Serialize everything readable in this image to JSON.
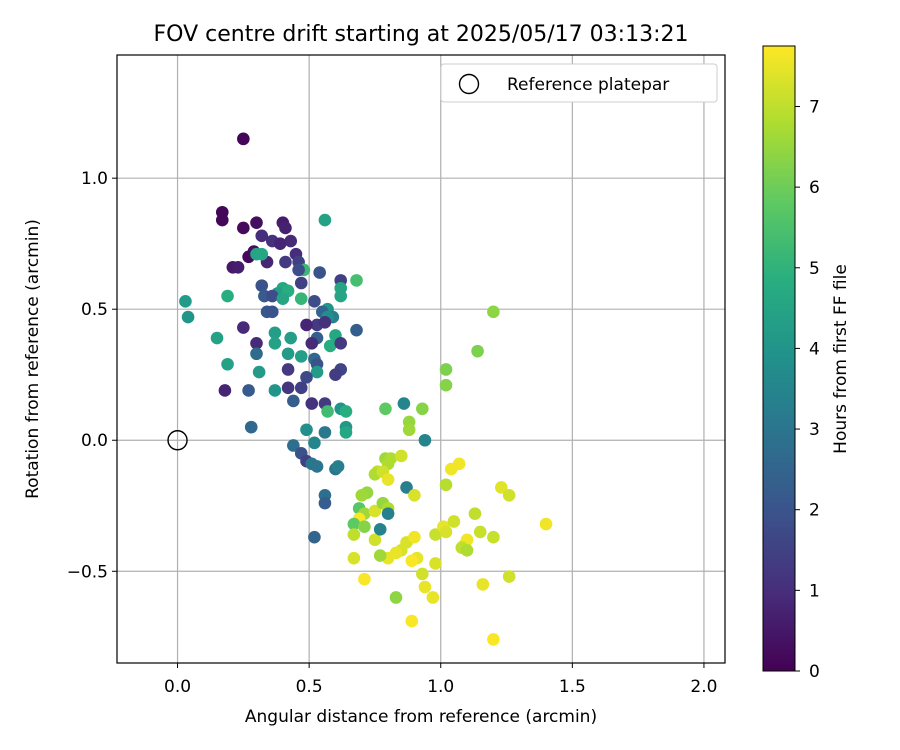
{
  "chart_data": {
    "type": "scatter",
    "title": "FOV centre drift starting at 2025/05/17 03:13:21",
    "xlabel": "Angular distance from reference (arcmin)",
    "ylabel": "Rotation from reference (arcmin)",
    "xlim": [
      -0.23,
      2.08
    ],
    "ylim": [
      -0.85,
      1.47
    ],
    "xticks": [
      0.0,
      0.5,
      1.0,
      1.5,
      2.0
    ],
    "xtick_labels": [
      "0.0",
      "0.5",
      "1.0",
      "1.5",
      "2.0"
    ],
    "yticks": [
      -0.5,
      0.0,
      0.5,
      1.0
    ],
    "ytick_labels": [
      "−0.5",
      "0.0",
      "0.5",
      "1.0"
    ],
    "grid": true,
    "legend": {
      "position": "top-right",
      "entries": [
        "Reference platepar"
      ]
    },
    "reference_point": {
      "x": 0.0,
      "y": 0.0
    },
    "colorbar": {
      "label": "Hours from first FF file",
      "range": [
        0,
        7.75
      ],
      "ticks": [
        0,
        1,
        2,
        3,
        4,
        5,
        6,
        7
      ],
      "tick_labels": [
        "0",
        "1",
        "2",
        "3",
        "4",
        "5",
        "6",
        "7"
      ],
      "colormap": "viridis"
    },
    "points": [
      {
        "x": 0.25,
        "y": 1.15,
        "t": 0.1
      },
      {
        "x": 0.17,
        "y": 0.87,
        "t": 0.1
      },
      {
        "x": 0.17,
        "y": 0.84,
        "t": 0.1
      },
      {
        "x": 0.25,
        "y": 0.81,
        "t": 0.2
      },
      {
        "x": 0.3,
        "y": 0.83,
        "t": 0.3
      },
      {
        "x": 0.4,
        "y": 0.83,
        "t": 0.6
      },
      {
        "x": 0.41,
        "y": 0.81,
        "t": 0.7
      },
      {
        "x": 0.32,
        "y": 0.78,
        "t": 1.0
      },
      {
        "x": 0.36,
        "y": 0.76,
        "t": 1.1
      },
      {
        "x": 0.43,
        "y": 0.76,
        "t": 0.9
      },
      {
        "x": 0.39,
        "y": 0.75,
        "t": 0.8
      },
      {
        "x": 0.29,
        "y": 0.72,
        "t": 0.3
      },
      {
        "x": 0.27,
        "y": 0.7,
        "t": 0.2
      },
      {
        "x": 0.45,
        "y": 0.71,
        "t": 1.0
      },
      {
        "x": 0.34,
        "y": 0.68,
        "t": 0.8
      },
      {
        "x": 0.41,
        "y": 0.68,
        "t": 1.3
      },
      {
        "x": 0.46,
        "y": 0.68,
        "t": 1.5
      },
      {
        "x": 0.21,
        "y": 0.66,
        "t": 0.5
      },
      {
        "x": 0.23,
        "y": 0.66,
        "t": 0.6
      },
      {
        "x": 0.3,
        "y": 0.71,
        "t": 4.5
      },
      {
        "x": 0.32,
        "y": 0.71,
        "t": 4.6
      },
      {
        "x": 0.48,
        "y": 0.65,
        "t": 5.2
      },
      {
        "x": 0.46,
        "y": 0.65,
        "t": 1.8
      },
      {
        "x": 0.54,
        "y": 0.64,
        "t": 2.0
      },
      {
        "x": 0.56,
        "y": 0.84,
        "t": 4.4
      },
      {
        "x": 0.68,
        "y": 0.61,
        "t": 5.4
      },
      {
        "x": 0.62,
        "y": 0.61,
        "t": 1.5
      },
      {
        "x": 0.47,
        "y": 0.6,
        "t": 1.5
      },
      {
        "x": 0.32,
        "y": 0.59,
        "t": 2.0
      },
      {
        "x": 0.4,
        "y": 0.58,
        "t": 4.6
      },
      {
        "x": 0.38,
        "y": 0.56,
        "t": 4.3
      },
      {
        "x": 0.42,
        "y": 0.57,
        "t": 4.8
      },
      {
        "x": 0.62,
        "y": 0.58,
        "t": 4.5
      },
      {
        "x": 0.19,
        "y": 0.55,
        "t": 4.8
      },
      {
        "x": 0.33,
        "y": 0.55,
        "t": 2.2
      },
      {
        "x": 0.36,
        "y": 0.55,
        "t": 1.8
      },
      {
        "x": 0.4,
        "y": 0.54,
        "t": 4.5
      },
      {
        "x": 0.47,
        "y": 0.54,
        "t": 5.1
      },
      {
        "x": 0.52,
        "y": 0.53,
        "t": 1.8
      },
      {
        "x": 0.62,
        "y": 0.55,
        "t": 4.5
      },
      {
        "x": 0.03,
        "y": 0.53,
        "t": 4.2
      },
      {
        "x": 0.57,
        "y": 0.5,
        "t": 4.0
      },
      {
        "x": 0.55,
        "y": 0.49,
        "t": 2.5
      },
      {
        "x": 0.34,
        "y": 0.49,
        "t": 2.1
      },
      {
        "x": 0.36,
        "y": 0.49,
        "t": 2.0
      },
      {
        "x": 0.59,
        "y": 0.47,
        "t": 3.3
      },
      {
        "x": 0.04,
        "y": 0.47,
        "t": 4.0
      },
      {
        "x": 0.57,
        "y": 0.47,
        "t": 3.8
      },
      {
        "x": 0.53,
        "y": 0.44,
        "t": 1.3
      },
      {
        "x": 0.49,
        "y": 0.44,
        "t": 0.8
      },
      {
        "x": 0.56,
        "y": 0.45,
        "t": 1.1
      },
      {
        "x": 0.68,
        "y": 0.42,
        "t": 2.3
      },
      {
        "x": 0.25,
        "y": 0.43,
        "t": 0.9
      },
      {
        "x": 0.37,
        "y": 0.41,
        "t": 4.3
      },
      {
        "x": 0.43,
        "y": 0.39,
        "t": 4.3
      },
      {
        "x": 0.53,
        "y": 0.39,
        "t": 2.3
      },
      {
        "x": 0.6,
        "y": 0.4,
        "t": 4.6
      },
      {
        "x": 0.15,
        "y": 0.39,
        "t": 4.4
      },
      {
        "x": 0.37,
        "y": 0.37,
        "t": 4.4
      },
      {
        "x": 0.3,
        "y": 0.37,
        "t": 0.9
      },
      {
        "x": 0.51,
        "y": 0.37,
        "t": 0.9
      },
      {
        "x": 0.58,
        "y": 0.36,
        "t": 4.8
      },
      {
        "x": 0.62,
        "y": 0.37,
        "t": 1.3
      },
      {
        "x": 0.3,
        "y": 0.33,
        "t": 2.7
      },
      {
        "x": 0.42,
        "y": 0.33,
        "t": 4.2
      },
      {
        "x": 0.47,
        "y": 0.32,
        "t": 4.3
      },
      {
        "x": 0.52,
        "y": 0.31,
        "t": 2.6
      },
      {
        "x": 0.53,
        "y": 0.29,
        "t": 2.0
      },
      {
        "x": 0.19,
        "y": 0.29,
        "t": 4.4
      },
      {
        "x": 0.42,
        "y": 0.27,
        "t": 1.3
      },
      {
        "x": 0.53,
        "y": 0.26,
        "t": 4.2
      },
      {
        "x": 0.62,
        "y": 0.27,
        "t": 1.6
      },
      {
        "x": 0.6,
        "y": 0.25,
        "t": 1.4
      },
      {
        "x": 0.31,
        "y": 0.26,
        "t": 4.2
      },
      {
        "x": 0.49,
        "y": 0.24,
        "t": 1.7
      },
      {
        "x": 0.18,
        "y": 0.19,
        "t": 0.8
      },
      {
        "x": 0.27,
        "y": 0.19,
        "t": 2.2
      },
      {
        "x": 0.37,
        "y": 0.19,
        "t": 4.0
      },
      {
        "x": 0.42,
        "y": 0.2,
        "t": 1.2
      },
      {
        "x": 0.47,
        "y": 0.2,
        "t": 1.5
      },
      {
        "x": 0.44,
        "y": 0.15,
        "t": 2.3
      },
      {
        "x": 0.51,
        "y": 0.14,
        "t": 1.1
      },
      {
        "x": 0.56,
        "y": 0.14,
        "t": 1.3
      },
      {
        "x": 0.57,
        "y": 0.11,
        "t": 5.3
      },
      {
        "x": 0.62,
        "y": 0.12,
        "t": 4.0
      },
      {
        "x": 0.64,
        "y": 0.11,
        "t": 4.8
      },
      {
        "x": 0.79,
        "y": 0.12,
        "t": 5.8
      },
      {
        "x": 0.86,
        "y": 0.14,
        "t": 3.5
      },
      {
        "x": 0.93,
        "y": 0.12,
        "t": 6.3
      },
      {
        "x": 0.88,
        "y": 0.07,
        "t": 6.5
      },
      {
        "x": 0.88,
        "y": 0.04,
        "t": 6.6
      },
      {
        "x": 0.28,
        "y": 0.05,
        "t": 2.6
      },
      {
        "x": 0.49,
        "y": 0.04,
        "t": 3.8
      },
      {
        "x": 0.64,
        "y": 0.05,
        "t": 4.1
      },
      {
        "x": 0.64,
        "y": 0.03,
        "t": 4.6
      },
      {
        "x": 0.56,
        "y": 0.03,
        "t": 3.1
      },
      {
        "x": 0.52,
        "y": -0.01,
        "t": 3.5
      },
      {
        "x": 0.44,
        "y": -0.02,
        "t": 2.8
      },
      {
        "x": 0.47,
        "y": -0.05,
        "t": 1.9
      },
      {
        "x": 0.49,
        "y": -0.08,
        "t": 1.5
      },
      {
        "x": 0.51,
        "y": -0.09,
        "t": 3.0
      },
      {
        "x": 0.53,
        "y": -0.1,
        "t": 3.0
      },
      {
        "x": 0.6,
        "y": -0.11,
        "t": 3.0
      },
      {
        "x": 0.61,
        "y": -0.1,
        "t": 3.3
      },
      {
        "x": 0.94,
        "y": 0.0,
        "t": 3.5
      },
      {
        "x": 0.79,
        "y": -0.07,
        "t": 6.6
      },
      {
        "x": 0.81,
        "y": -0.07,
        "t": 6.8
      },
      {
        "x": 0.8,
        "y": -0.09,
        "t": 6.8
      },
      {
        "x": 0.85,
        "y": -0.06,
        "t": 7.2
      },
      {
        "x": 0.76,
        "y": -0.12,
        "t": 7.0
      },
      {
        "x": 0.75,
        "y": -0.13,
        "t": 6.8
      },
      {
        "x": 0.78,
        "y": -0.12,
        "t": 7.2
      },
      {
        "x": 0.8,
        "y": -0.15,
        "t": 7.5
      },
      {
        "x": 0.87,
        "y": -0.18,
        "t": 3.3
      },
      {
        "x": 0.56,
        "y": -0.21,
        "t": 2.8
      },
      {
        "x": 0.56,
        "y": -0.24,
        "t": 2.3
      },
      {
        "x": 0.72,
        "y": -0.2,
        "t": 6.5
      },
      {
        "x": 0.7,
        "y": -0.21,
        "t": 6.6
      },
      {
        "x": 0.9,
        "y": -0.21,
        "t": 7.3
      },
      {
        "x": 1.02,
        "y": -0.17,
        "t": 6.9
      },
      {
        "x": 1.04,
        "y": -0.11,
        "t": 7.6
      },
      {
        "x": 1.07,
        "y": -0.09,
        "t": 7.6
      },
      {
        "x": 1.02,
        "y": 0.21,
        "t": 6.3
      },
      {
        "x": 1.02,
        "y": 0.27,
        "t": 6.2
      },
      {
        "x": 1.14,
        "y": 0.34,
        "t": 6.2
      },
      {
        "x": 1.2,
        "y": 0.49,
        "t": 6.4
      },
      {
        "x": 0.69,
        "y": -0.26,
        "t": 5.7
      },
      {
        "x": 0.71,
        "y": -0.28,
        "t": 6.6
      },
      {
        "x": 0.75,
        "y": -0.27,
        "t": 7.3
      },
      {
        "x": 0.78,
        "y": -0.24,
        "t": 6.5
      },
      {
        "x": 0.8,
        "y": -0.26,
        "t": 6.8
      },
      {
        "x": 0.8,
        "y": -0.28,
        "t": 3.3
      },
      {
        "x": 0.69,
        "y": -0.3,
        "t": 7.7
      },
      {
        "x": 0.67,
        "y": -0.32,
        "t": 5.8
      },
      {
        "x": 0.71,
        "y": -0.33,
        "t": 6.3
      },
      {
        "x": 0.67,
        "y": -0.36,
        "t": 7.0
      },
      {
        "x": 0.75,
        "y": -0.38,
        "t": 7.2
      },
      {
        "x": 0.77,
        "y": -0.34,
        "t": 3.4
      },
      {
        "x": 0.87,
        "y": -0.39,
        "t": 7.3
      },
      {
        "x": 0.9,
        "y": -0.37,
        "t": 7.6
      },
      {
        "x": 0.85,
        "y": -0.42,
        "t": 7.3
      },
      {
        "x": 0.83,
        "y": -0.43,
        "t": 7.5
      },
      {
        "x": 0.8,
        "y": -0.45,
        "t": 7.5
      },
      {
        "x": 0.77,
        "y": -0.44,
        "t": 6.6
      },
      {
        "x": 0.91,
        "y": -0.45,
        "t": 7.5
      },
      {
        "x": 0.89,
        "y": -0.46,
        "t": 7.7
      },
      {
        "x": 0.98,
        "y": -0.36,
        "t": 7.1
      },
      {
        "x": 1.01,
        "y": -0.33,
        "t": 7.5
      },
      {
        "x": 1.02,
        "y": -0.35,
        "t": 7.3
      },
      {
        "x": 1.05,
        "y": -0.31,
        "t": 7.2
      },
      {
        "x": 1.1,
        "y": -0.38,
        "t": 7.6
      },
      {
        "x": 1.09,
        "y": -0.4,
        "t": 7.6
      },
      {
        "x": 1.08,
        "y": -0.41,
        "t": 7.0
      },
      {
        "x": 1.1,
        "y": -0.42,
        "t": 6.8
      },
      {
        "x": 1.13,
        "y": -0.28,
        "t": 7.0
      },
      {
        "x": 1.15,
        "y": -0.35,
        "t": 7.1
      },
      {
        "x": 1.2,
        "y": -0.37,
        "t": 7.1
      },
      {
        "x": 1.23,
        "y": -0.18,
        "t": 7.4
      },
      {
        "x": 1.26,
        "y": -0.21,
        "t": 7.2
      },
      {
        "x": 1.4,
        "y": -0.32,
        "t": 7.6
      },
      {
        "x": 0.52,
        "y": -0.37,
        "t": 2.5
      },
      {
        "x": 0.67,
        "y": -0.45,
        "t": 7.3
      },
      {
        "x": 0.98,
        "y": -0.47,
        "t": 7.3
      },
      {
        "x": 0.93,
        "y": -0.51,
        "t": 7.2
      },
      {
        "x": 0.71,
        "y": -0.53,
        "t": 7.7
      },
      {
        "x": 0.94,
        "y": -0.56,
        "t": 7.5
      },
      {
        "x": 0.97,
        "y": -0.6,
        "t": 7.5
      },
      {
        "x": 0.83,
        "y": -0.6,
        "t": 6.4
      },
      {
        "x": 1.16,
        "y": -0.55,
        "t": 7.5
      },
      {
        "x": 1.26,
        "y": -0.52,
        "t": 7.2
      },
      {
        "x": 0.89,
        "y": -0.69,
        "t": 7.7
      },
      {
        "x": 1.2,
        "y": -0.76,
        "t": 7.7
      }
    ]
  }
}
